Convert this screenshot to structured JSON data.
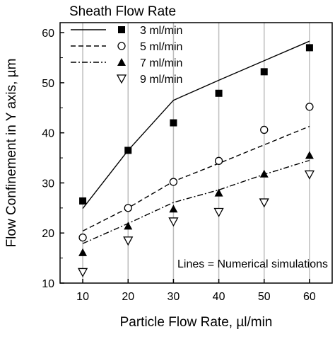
{
  "chart_data": {
    "type": "scatter",
    "legend_title": "Sheath Flow Rate",
    "xlabel": "Particle Flow Rate, µl/min",
    "ylabel": "Flow Confinement in Y axis, µm",
    "x_ticks": [
      10,
      20,
      30,
      40,
      50,
      60
    ],
    "y_ticks": [
      10,
      20,
      30,
      40,
      50,
      60
    ],
    "xlim": [
      5,
      65
    ],
    "ylim": [
      10,
      62
    ],
    "grid": "vertical",
    "legend_position": "top-left",
    "annotation": "Lines = Numerical simulations",
    "series": [
      {
        "name": "3 ml/min",
        "marker": "filled-square",
        "line": "solid",
        "x": [
          10,
          20,
          30,
          40,
          50,
          60
        ],
        "points": [
          26.4,
          36.5,
          42.0,
          47.9,
          52.2,
          57.0
        ],
        "line_values": [
          24.9,
          36.5,
          46.5,
          50.5,
          54.4,
          58.3
        ]
      },
      {
        "name": "5 ml/min",
        "marker": "open-circle",
        "line": "dashed",
        "x": [
          10,
          20,
          30,
          40,
          50,
          60
        ],
        "points": [
          19.1,
          25.0,
          30.2,
          34.4,
          40.6,
          45.2
        ],
        "line_values": [
          20.4,
          25.0,
          30.3,
          33.9,
          37.6,
          41.3
        ]
      },
      {
        "name": "7 ml/min",
        "marker": "filled-triangle-up",
        "line": "dashdot",
        "x": [
          10,
          20,
          30,
          40,
          50,
          60
        ],
        "points": [
          16.1,
          21.4,
          24.8,
          28.0,
          31.8,
          35.5
        ],
        "line_values": [
          17.9,
          21.9,
          26.1,
          28.6,
          31.7,
          34.5
        ]
      },
      {
        "name": "9 ml/min",
        "marker": "open-triangle-down",
        "line": "none",
        "x": [
          10,
          20,
          30,
          40,
          50,
          60
        ],
        "points": [
          12.2,
          18.5,
          22.3,
          24.2,
          26.1,
          31.7
        ]
      }
    ]
  }
}
